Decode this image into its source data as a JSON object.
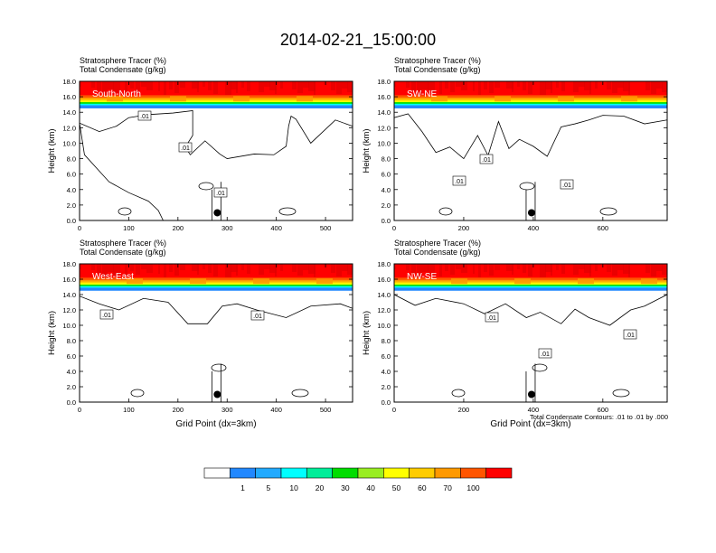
{
  "title": "2014-02-21_15:00:00",
  "footnote": "Total Condensate Contours: .01 to .01 by .000",
  "colorbar": {
    "labels": [
      "1",
      "5",
      "10",
      "20",
      "30",
      "40",
      "50",
      "60",
      "70",
      "100"
    ],
    "colors": [
      "#ffffff",
      "#2288ff",
      "#22aaff",
      "#00ffff",
      "#00ee99",
      "#00dd00",
      "#99ee22",
      "#ffff00",
      "#ffcc00",
      "#ff9900",
      "#ff5500",
      "#ff0000"
    ]
  },
  "chart_data": [
    {
      "type": "contour",
      "panel_label": "South-North",
      "header_line1": "Stratosphere Tracer   (%)",
      "header_line2": "Total Condensate   (g/kg)",
      "ylabel": "Height (km)",
      "xlabel": "",
      "xlim": [
        0,
        555
      ],
      "ylim": [
        0,
        18
      ],
      "xticks": [
        "0",
        "100",
        "200",
        "300",
        "400",
        "500"
      ],
      "yticks": [
        "0.0",
        "2.0",
        "4.0",
        "6.0",
        "8.0",
        "10.0",
        "12.0",
        "14.0",
        "16.0",
        "18.0"
      ],
      "tracer_band_km": [
        14.5,
        18.0
      ],
      "contour_labels": [
        ".01",
        ".01",
        ".01"
      ],
      "marker": {
        "x": 280,
        "y": 1.0
      },
      "contour": [
        [
          0,
          12.6
        ],
        [
          40,
          11.5
        ],
        [
          75,
          12.2
        ],
        [
          100,
          13.3
        ],
        [
          140,
          13.7
        ],
        [
          190,
          13.9
        ],
        [
          230,
          14.2
        ],
        [
          230,
          11
        ],
        [
          215,
          9.5
        ],
        [
          225,
          8.5
        ],
        [
          255,
          10.3
        ],
        [
          285,
          8.6
        ],
        [
          300,
          8.0
        ],
        [
          355,
          8.6
        ],
        [
          395,
          8.5
        ],
        [
          420,
          9.6
        ],
        [
          425,
          12.2
        ],
        [
          430,
          13.5
        ],
        [
          440,
          13.1
        ],
        [
          470,
          10
        ],
        [
          520,
          13
        ],
        [
          555,
          12.2
        ]
      ],
      "contour_floor": [
        [
          0,
          12.6
        ],
        [
          10,
          8.5
        ],
        [
          60,
          5
        ],
        [
          100,
          3.6
        ],
        [
          140,
          2.5
        ],
        [
          160,
          1.3
        ],
        [
          170,
          0
        ],
        [
          555,
          0
        ],
        [
          555,
          12.2
        ]
      ],
      "legend_position": "bottom"
    },
    {
      "type": "contour",
      "panel_label": "SW-NE",
      "header_line1": "Stratosphere Tracer   (%)",
      "header_line2": "Total Condensate   (g/kg)",
      "ylabel": "Height (km)",
      "xlabel": "",
      "xlim": [
        0,
        785
      ],
      "ylim": [
        0,
        18
      ],
      "xticks": [
        "0",
        "200",
        "400",
        "600"
      ],
      "yticks": [
        "0.0",
        "2.0",
        "4.0",
        "6.0",
        "8.0",
        "10.0",
        "12.0",
        "14.0",
        "16.0",
        "18.0"
      ],
      "tracer_band_km": [
        14.5,
        18.0
      ],
      "contour_labels": [
        ".01",
        ".01",
        ".01"
      ],
      "marker": {
        "x": 395,
        "y": 1.0
      },
      "contour": [
        [
          0,
          13.3
        ],
        [
          40,
          13.8
        ],
        [
          80,
          11.5
        ],
        [
          120,
          8.8
        ],
        [
          160,
          9.5
        ],
        [
          200,
          8.0
        ],
        [
          240,
          11.0
        ],
        [
          270,
          8.4
        ],
        [
          300,
          12.8
        ],
        [
          330,
          9.3
        ],
        [
          360,
          10.5
        ],
        [
          400,
          9.6
        ],
        [
          440,
          8.3
        ],
        [
          480,
          12.1
        ],
        [
          520,
          12.5
        ],
        [
          560,
          13.0
        ],
        [
          600,
          13.6
        ],
        [
          660,
          13.5
        ],
        [
          720,
          12.5
        ],
        [
          785,
          13.0
        ]
      ],
      "contour_floor": [
        [
          0,
          13.3
        ],
        [
          0,
          0
        ],
        [
          785,
          0
        ],
        [
          785,
          13.0
        ]
      ],
      "legend_position": "bottom"
    },
    {
      "type": "contour",
      "panel_label": "West-East",
      "header_line1": "Stratosphere Tracer   (%)",
      "header_line2": "Total Condensate   (g/kg)",
      "ylabel": "Height (km)",
      "xlabel": "Grid Point (dx=3km)",
      "xlim": [
        0,
        555
      ],
      "ylim": [
        0,
        18
      ],
      "xticks": [
        "0",
        "100",
        "200",
        "300",
        "400",
        "500"
      ],
      "yticks": [
        "0.0",
        "2.0",
        "4.0",
        "6.0",
        "8.0",
        "10.0",
        "12.0",
        "14.0",
        "16.0",
        "18.0"
      ],
      "tracer_band_km": [
        14.5,
        18.0
      ],
      "contour_labels": [
        ".01",
        ".01"
      ],
      "marker": {
        "x": 280,
        "y": 1.0
      },
      "contour": [
        [
          0,
          13.8
        ],
        [
          40,
          12.8
        ],
        [
          80,
          12.0
        ],
        [
          130,
          13.5
        ],
        [
          180,
          13.0
        ],
        [
          220,
          10.2
        ],
        [
          260,
          10.2
        ],
        [
          290,
          12.5
        ],
        [
          320,
          12.8
        ],
        [
          360,
          12.0
        ],
        [
          420,
          11.0
        ],
        [
          470,
          12.5
        ],
        [
          530,
          12.8
        ],
        [
          555,
          12.2
        ]
      ],
      "contour_floor": [
        [
          0,
          13.8
        ],
        [
          0,
          0
        ],
        [
          555,
          0
        ],
        [
          555,
          12.2
        ]
      ],
      "legend_position": "bottom"
    },
    {
      "type": "contour",
      "panel_label": "NW-SE",
      "header_line1": "Stratosphere Tracer   (%)",
      "header_line2": "Total Condensate   (g/kg)",
      "ylabel": "Height (km)",
      "xlabel": "Grid Point (dx=3km)",
      "xlim": [
        0,
        785
      ],
      "ylim": [
        0,
        18
      ],
      "xticks": [
        "0",
        "200",
        "400",
        "600"
      ],
      "yticks": [
        "0.0",
        "2.0",
        "4.0",
        "6.0",
        "8.0",
        "10.0",
        "12.0",
        "14.0",
        "16.0",
        "18.0"
      ],
      "tracer_band_km": [
        14.5,
        18.0
      ],
      "contour_labels": [
        ".01",
        ".01",
        ".01"
      ],
      "marker": {
        "x": 395,
        "y": 1.0
      },
      "contour": [
        [
          0,
          14.0
        ],
        [
          60,
          12.6
        ],
        [
          120,
          13.5
        ],
        [
          200,
          12.8
        ],
        [
          260,
          11.5
        ],
        [
          320,
          12.8
        ],
        [
          380,
          11.0
        ],
        [
          420,
          11.7
        ],
        [
          480,
          10.2
        ],
        [
          520,
          12.1
        ],
        [
          560,
          11.0
        ],
        [
          620,
          10.0
        ],
        [
          680,
          12.0
        ],
        [
          720,
          12.5
        ],
        [
          785,
          14.0
        ]
      ],
      "contour_floor": [
        [
          0,
          14.0
        ],
        [
          0,
          0
        ],
        [
          785,
          0
        ],
        [
          785,
          14.0
        ]
      ],
      "legend_position": "bottom"
    }
  ]
}
